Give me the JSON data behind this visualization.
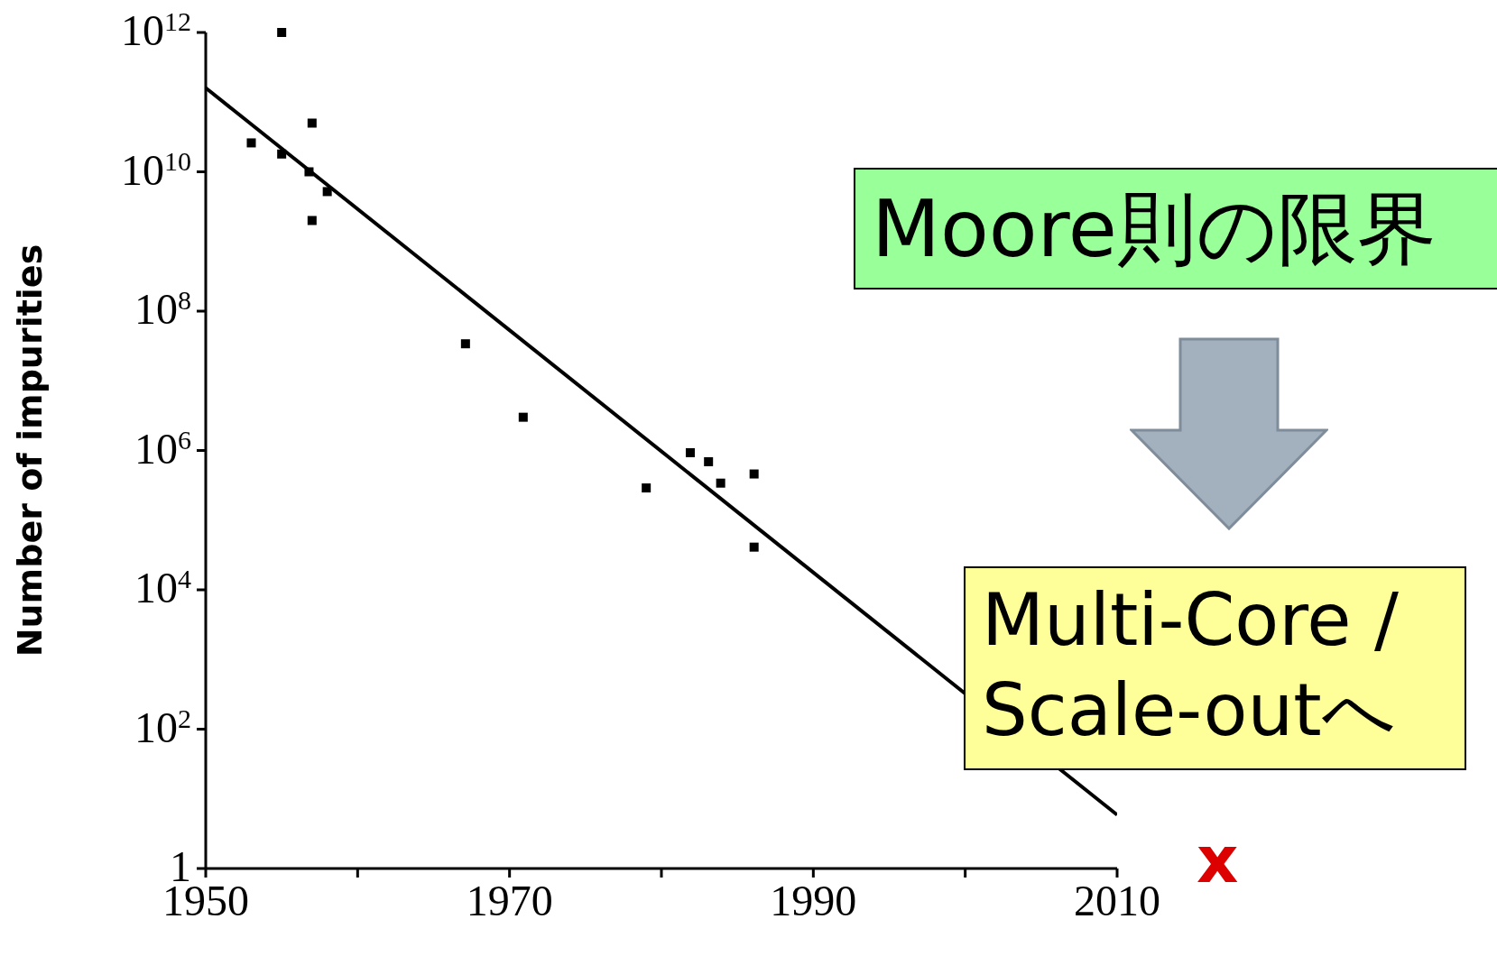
{
  "chart_data": {
    "type": "scatter",
    "ylabel": "Number of impurities",
    "log": "y",
    "xlim": [
      1950,
      2010
    ],
    "xticks": [
      1950,
      {
        "value": 1960,
        "label": null
      },
      1970,
      {
        "value": 1980,
        "label": null
      },
      1990,
      {
        "value": 2000,
        "label": null
      },
      2010
    ],
    "ylim": [
      1,
      1000000000000
    ],
    "yticks": [
      1,
      {
        "value": 100,
        "label": "10$^{2}$"
      },
      {
        "value": 10000,
        "label": "10$^{4}$"
      },
      {
        "value": 1000000,
        "label": "10$^{6}$"
      },
      {
        "value": 100000000,
        "label": "10$^{8}$"
      },
      {
        "value": 10000000000,
        "label": "10$^{10}$"
      },
      {
        "value": 1000000000000,
        "label": "10$^{12}$"
      }
    ],
    "series": [
      {
        "color": "#000000",
        "marker": "square",
        "x": [
          1953,
          1955,
          1955,
          1957,
          1956.8,
          1958,
          1957,
          1967.1,
          1970.9,
          1979,
          1981.9,
          1983.1,
          1983.9,
          1986.1,
          1986.1
        ],
        "values": [
          26000000000,
          1000000000000,
          18000000000,
          50000000000,
          10000000000,
          5200000000,
          2000000000,
          34000000,
          3000000,
          290000,
          930000,
          690000,
          340000,
          460000,
          41000
        ]
      },
      {
        "type": "line",
        "color": "#000000",
        "marker": "none",
        "line_style": "solid",
        "x": [
          1950,
          2010
        ],
        "values": [
          160000000000,
          5.9
        ]
      }
    ],
    "annotations": [
      "Moore則の限界",
      "Multi-Core / Scale-outへ",
      "x"
    ]
  }
}
